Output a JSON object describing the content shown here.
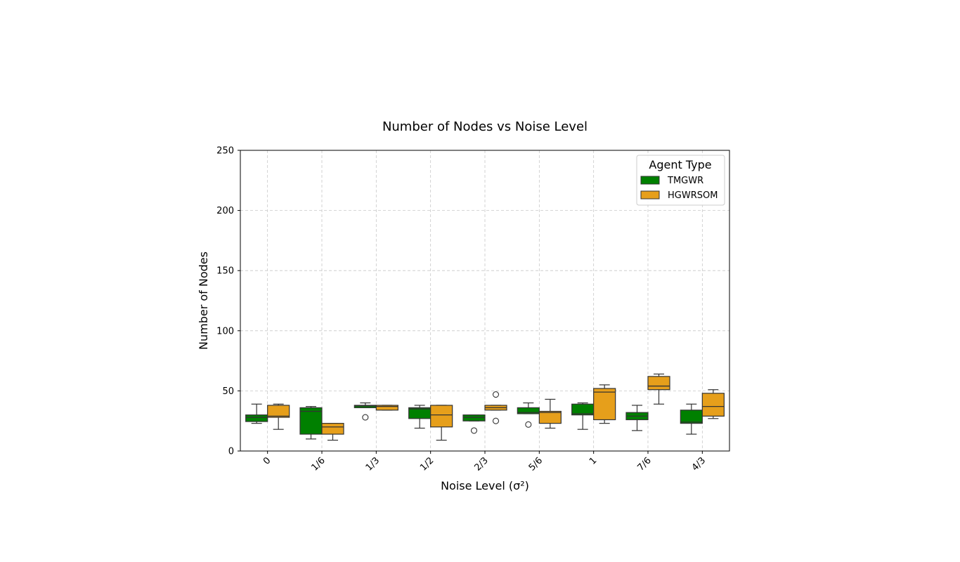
{
  "chart_data": {
    "type": "box",
    "title": "Number of Nodes vs Noise Level",
    "xlabel": "Noise Level (σ²)",
    "ylabel": "Number of Nodes",
    "ylim": [
      0,
      250
    ],
    "yticks": [
      0,
      50,
      100,
      150,
      200,
      250
    ],
    "categories": [
      "0",
      "1/6",
      "1/3",
      "1/2",
      "2/3",
      "5/6",
      "1",
      "7/6",
      "4/3"
    ],
    "grid": true,
    "legend": {
      "title": "Agent Type",
      "position": "top-right"
    },
    "series": [
      {
        "name": "TMGWR",
        "color": "#008000",
        "boxes": [
          {
            "whislo": 23,
            "q1": 24.5,
            "med": 28,
            "q3": 30,
            "whishi": 39,
            "fliers": []
          },
          {
            "whislo": 10,
            "q1": 14,
            "med": 33,
            "q3": 36,
            "whishi": 37,
            "fliers": []
          },
          {
            "whislo": 36,
            "q1": 36,
            "med": 37.5,
            "q3": 38,
            "whishi": 40,
            "fliers": [
              28
            ]
          },
          {
            "whislo": 19,
            "q1": 27,
            "med": 35,
            "q3": 36,
            "whishi": 38,
            "fliers": []
          },
          {
            "whislo": 25,
            "q1": 25,
            "med": 28,
            "q3": 30,
            "whishi": 30,
            "fliers": [
              17
            ]
          },
          {
            "whislo": 31,
            "q1": 31,
            "med": 32,
            "q3": 36,
            "whishi": 40,
            "fliers": [
              22
            ]
          },
          {
            "whislo": 18,
            "q1": 30,
            "med": 31,
            "q3": 39,
            "whishi": 40,
            "fliers": []
          },
          {
            "whislo": 17,
            "q1": 26,
            "med": 29,
            "q3": 32,
            "whishi": 38,
            "fliers": []
          },
          {
            "whislo": 14,
            "q1": 23,
            "med": 24,
            "q3": 34,
            "whishi": 39,
            "fliers": []
          }
        ]
      },
      {
        "name": "HGWRSOM",
        "color": "#e69f1b",
        "boxes": [
          {
            "whislo": 18,
            "q1": 28,
            "med": 29,
            "q3": 38,
            "whishi": 39,
            "fliers": []
          },
          {
            "whislo": 9,
            "q1": 14,
            "med": 20,
            "q3": 23,
            "whishi": 23,
            "fliers": []
          },
          {
            "whislo": 34,
            "q1": 34,
            "med": 37,
            "q3": 38,
            "whishi": 38,
            "fliers": []
          },
          {
            "whislo": 9,
            "q1": 20,
            "med": 30,
            "q3": 38,
            "whishi": 38,
            "fliers": []
          },
          {
            "whislo": 34,
            "q1": 34,
            "med": 36,
            "q3": 38,
            "whishi": 38,
            "fliers": [
              25,
              47
            ]
          },
          {
            "whislo": 19,
            "q1": 23,
            "med": 32,
            "q3": 33,
            "whishi": 43,
            "fliers": []
          },
          {
            "whislo": 23,
            "q1": 26,
            "med": 49,
            "q3": 52,
            "whishi": 55,
            "fliers": []
          },
          {
            "whislo": 39,
            "q1": 51,
            "med": 54,
            "q3": 62,
            "whishi": 64,
            "fliers": []
          },
          {
            "whislo": 27,
            "q1": 29,
            "med": 37,
            "q3": 48,
            "whishi": 51,
            "fliers": []
          }
        ]
      }
    ]
  }
}
